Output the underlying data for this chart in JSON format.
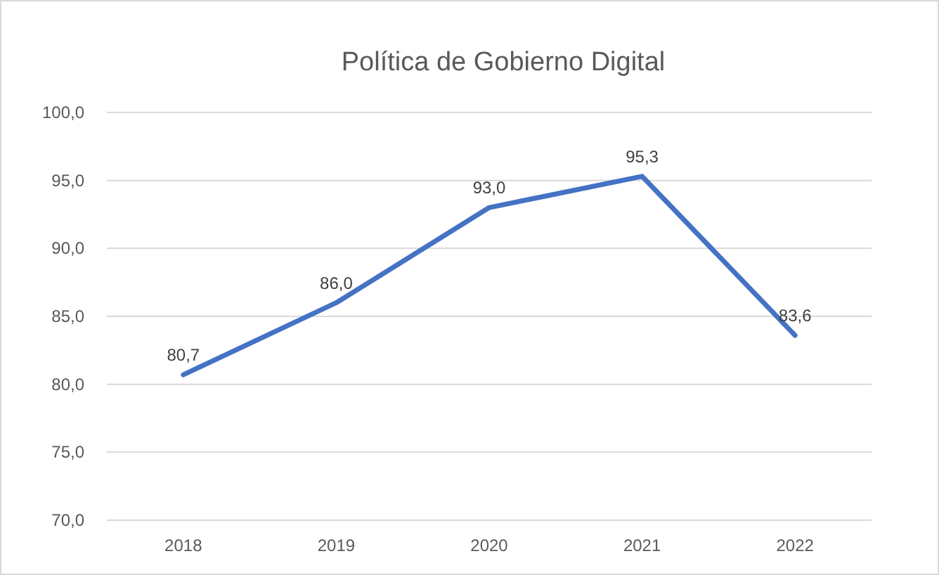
{
  "chart_data": {
    "type": "line",
    "title": "Política de Gobierno Digital",
    "categories": [
      "2018",
      "2019",
      "2020",
      "2021",
      "2022"
    ],
    "series": [
      {
        "color": "#4472c4",
        "values": [
          80.7,
          86.0,
          93.0,
          95.3,
          83.6
        ],
        "value_labels": [
          "80,7",
          "86,0",
          "93,0",
          "95,3",
          "83,6"
        ]
      }
    ],
    "ylim": [
      70,
      100
    ],
    "yticks": [
      {
        "value": 70,
        "label": "70,0"
      },
      {
        "value": 75,
        "label": "75,0"
      },
      {
        "value": 80,
        "label": "80,0"
      },
      {
        "value": 85,
        "label": "85,0"
      },
      {
        "value": 90,
        "label": "90,0"
      },
      {
        "value": 95,
        "label": "95,0"
      },
      {
        "value": 100,
        "label": "100,0"
      }
    ],
    "grid": "y",
    "marker": "none",
    "line_style": "solid"
  }
}
